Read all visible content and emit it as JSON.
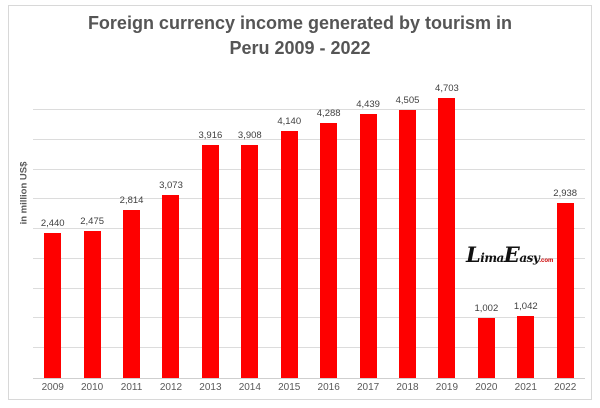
{
  "chart_data": {
    "type": "bar",
    "title": "Foreign currency income generated by tourism in Peru 2009 - 2022",
    "title_line1": "Foreign currency income generated by tourism in",
    "title_line2": "Peru 2009 - 2022",
    "ylabel": "in million US$",
    "xlabel": "",
    "categories": [
      "2009",
      "2010",
      "2011",
      "2012",
      "2013",
      "2014",
      "2015",
      "2016",
      "2017",
      "2018",
      "2019",
      "2020",
      "2021",
      "2022"
    ],
    "values": [
      2440,
      2475,
      2814,
      3073,
      3916,
      3908,
      4140,
      4288,
      4439,
      4505,
      4703,
      1002,
      1042,
      2938
    ],
    "value_labels": [
      "2,440",
      "2,475",
      "2,814",
      "3,073",
      "3,916",
      "3,908",
      "4,140",
      "4,288",
      "4,439",
      "4,505",
      "4,703",
      "1,002",
      "1,042",
      "2,938"
    ],
    "ylim": [
      0,
      4500
    ],
    "gridline_step": 500,
    "grid": true,
    "legend": "none",
    "bar_color": "#fe0000",
    "gridline_color": "#dcdcdc",
    "title_color": "#555555"
  },
  "watermark": {
    "part1": "Lima",
    "part2": "Easy",
    "suffix": ".com"
  }
}
